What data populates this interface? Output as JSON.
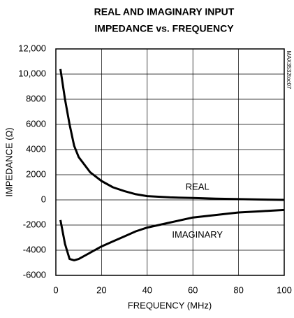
{
  "chart_data": {
    "type": "line",
    "title": [
      "REAL AND IMAGINARY INPUT",
      "IMPEDANCE vs. FREQUENCY"
    ],
    "xlabel": "FREQUENCY (MHz)",
    "ylabel": "IMPEDANCE (Ω)",
    "side_note": "MAX3532toc07",
    "x": [
      2,
      4,
      6,
      8,
      10,
      15,
      20,
      25,
      30,
      35,
      40,
      50,
      60,
      70,
      80,
      90,
      100
    ],
    "series": [
      {
        "name": "REAL",
        "color": "#000000",
        "values": [
          10400,
          8000,
          6000,
          4300,
          3400,
          2200,
          1500,
          1000,
          700,
          450,
          300,
          200,
          150,
          100,
          60,
          30,
          0
        ]
      },
      {
        "name": "IMAGINARY",
        "color": "#000000",
        "values": [
          -1600,
          -3500,
          -4700,
          -4800,
          -4700,
          -4200,
          -3700,
          -3300,
          -2900,
          -2500,
          -2200,
          -1800,
          -1400,
          -1200,
          -1000,
          -900,
          -800
        ]
      }
    ],
    "xlim": [
      0,
      100
    ],
    "xticks": [
      0,
      20,
      40,
      60,
      80,
      100
    ],
    "ylim": [
      -6000,
      12000
    ],
    "yticks": [
      -6000,
      -4000,
      -2000,
      0,
      2000,
      4000,
      6000,
      8000,
      {
        "value": 10000,
        "label": "10,000"
      },
      {
        "value": 12000,
        "label": "12,000"
      }
    ],
    "grid": true
  }
}
